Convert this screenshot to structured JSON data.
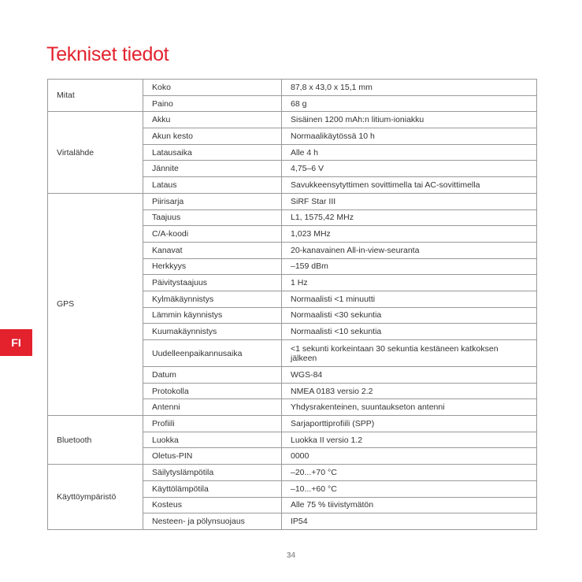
{
  "title": "Tekniset tiedot",
  "language_tab": "FI",
  "page_number": "34",
  "groups": [
    {
      "name": "Mitat",
      "rows": [
        {
          "key": "Koko",
          "value": "87,8 x 43,0 x 15,1 mm"
        },
        {
          "key": "Paino",
          "value": "68 g"
        }
      ]
    },
    {
      "name": "Virtalähde",
      "rows": [
        {
          "key": "Akku",
          "value": "Sisäinen 1200 mAh:n litium-ioniakku"
        },
        {
          "key": "Akun kesto",
          "value": "Normaalikäytössä 10 h"
        },
        {
          "key": "Latausaika",
          "value": "Alle 4 h"
        },
        {
          "key": "Jännite",
          "value": "4,75–6 V"
        },
        {
          "key": "Lataus",
          "value": "Savukkeensytyttimen sovittimella tai AC-sovittimella"
        }
      ]
    },
    {
      "name": "GPS",
      "rows": [
        {
          "key": "Piirisarja",
          "value": "SiRF Star III"
        },
        {
          "key": "Taajuus",
          "value": "L1, 1575,42 MHz"
        },
        {
          "key": "C/A-koodi",
          "value": "1,023 MHz"
        },
        {
          "key": "Kanavat",
          "value": "20-kanavainen All-in-view-seuranta"
        },
        {
          "key": "Herkkyys",
          "value": "–159 dBm"
        },
        {
          "key": "Päivitystaajuus",
          "value": "1 Hz"
        },
        {
          "key": "Kylmäkäynnistys",
          "value": "Normaalisti <1 minuutti"
        },
        {
          "key": "Lämmin käynnistys",
          "value": "Normaalisti <30 sekuntia"
        },
        {
          "key": "Kuumakäynnistys",
          "value": "Normaalisti <10 sekuntia"
        },
        {
          "key": "Uudelleenpaikannusaika",
          "value": "<1 sekunti korkeintaan 30 sekuntia kestäneen katkoksen jälkeen"
        },
        {
          "key": "Datum",
          "value": "WGS-84"
        },
        {
          "key": "Protokolla",
          "value": "NMEA 0183 versio 2.2"
        },
        {
          "key": "Antenni",
          "value": "Yhdysrakenteinen, suuntaukseton antenni"
        }
      ]
    },
    {
      "name": "Bluetooth",
      "rows": [
        {
          "key": "Profiili",
          "value": "Sarjaporttiprofiili (SPP)"
        },
        {
          "key": "Luokka",
          "value": "Luokka II versio 1.2"
        },
        {
          "key": "Oletus-PIN",
          "value": "0000"
        }
      ]
    },
    {
      "name": "Käyttöympäristö",
      "rows": [
        {
          "key": "Säilytyslämpötila",
          "value": "–20...+70 °C"
        },
        {
          "key": "Käyttölämpötila",
          "value": "–10...+60 °C"
        },
        {
          "key": "Kosteus",
          "value": "Alle 75 % tiivistymätön"
        },
        {
          "key": "Nesteen- ja pölynsuojaus",
          "value": "IP54"
        }
      ]
    }
  ]
}
